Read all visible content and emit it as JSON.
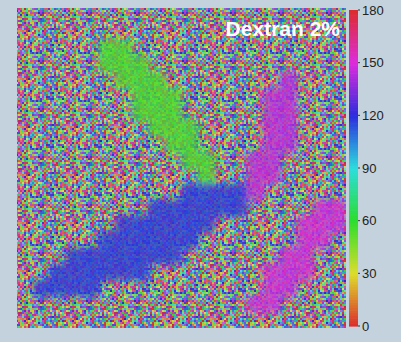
{
  "chart_data": {
    "type": "heatmap",
    "title": "Dextran 2%",
    "cells": [
      [
        null,
        null,
        null,
        null,
        null,
        null,
        null,
        null,
        null,
        null,
        null,
        null,
        null,
        null,
        null,
        null,
        null,
        null,
        null,
        null
      ],
      [
        null,
        null,
        null,
        null,
        null,
        null,
        null,
        null,
        null,
        null,
        null,
        null,
        null,
        null,
        null,
        null,
        null,
        null,
        null,
        null
      ],
      [
        null,
        null,
        null,
        null,
        null,
        55,
        55,
        null,
        null,
        null,
        null,
        null,
        null,
        null,
        null,
        null,
        null,
        null,
        null,
        null
      ],
      [
        null,
        null,
        null,
        null,
        null,
        55,
        55,
        55,
        null,
        null,
        null,
        null,
        null,
        null,
        null,
        null,
        null,
        null,
        null,
        null
      ],
      [
        null,
        null,
        null,
        null,
        null,
        null,
        55,
        55,
        55,
        null,
        null,
        null,
        null,
        null,
        null,
        null,
        145,
        null,
        null,
        null
      ],
      [
        null,
        null,
        null,
        null,
        null,
        null,
        null,
        55,
        55,
        55,
        null,
        null,
        null,
        null,
        null,
        145,
        145,
        null,
        null,
        null
      ],
      [
        null,
        null,
        null,
        null,
        null,
        null,
        null,
        55,
        55,
        55,
        null,
        null,
        null,
        null,
        null,
        145,
        145,
        null,
        null,
        null
      ],
      [
        null,
        null,
        null,
        null,
        null,
        null,
        null,
        null,
        55,
        55,
        55,
        null,
        null,
        null,
        null,
        145,
        145,
        null,
        null,
        null
      ],
      [
        null,
        null,
        null,
        null,
        null,
        null,
        null,
        null,
        null,
        55,
        55,
        null,
        null,
        null,
        null,
        145,
        145,
        null,
        null,
        null
      ],
      [
        null,
        null,
        null,
        null,
        null,
        null,
        null,
        null,
        null,
        null,
        55,
        55,
        null,
        null,
        145,
        145,
        null,
        null,
        null,
        null
      ],
      [
        null,
        null,
        null,
        null,
        null,
        null,
        null,
        null,
        null,
        null,
        null,
        55,
        null,
        null,
        145,
        145,
        null,
        null,
        null,
        null
      ],
      [
        null,
        null,
        null,
        null,
        null,
        null,
        null,
        null,
        null,
        null,
        118,
        118,
        118,
        118,
        145,
        null,
        null,
        null,
        null,
        null
      ],
      [
        null,
        null,
        null,
        null,
        null,
        null,
        null,
        null,
        118,
        118,
        118,
        118,
        118,
        118,
        null,
        null,
        null,
        null,
        148,
        148
      ],
      [
        null,
        null,
        null,
        null,
        null,
        null,
        118,
        118,
        118,
        118,
        118,
        118,
        null,
        null,
        null,
        null,
        null,
        148,
        148,
        148
      ],
      [
        null,
        null,
        null,
        null,
        null,
        118,
        118,
        118,
        118,
        118,
        118,
        null,
        null,
        null,
        null,
        null,
        null,
        148,
        148,
        null
      ],
      [
        null,
        null,
        null,
        118,
        118,
        118,
        118,
        118,
        118,
        118,
        null,
        null,
        null,
        null,
        null,
        null,
        148,
        148,
        null,
        null
      ],
      [
        null,
        null,
        118,
        118,
        118,
        118,
        118,
        118,
        null,
        null,
        null,
        null,
        null,
        null,
        null,
        148,
        148,
        148,
        null,
        null
      ],
      [
        null,
        118,
        118,
        118,
        118,
        null,
        null,
        null,
        null,
        null,
        null,
        null,
        null,
        null,
        null,
        148,
        148,
        null,
        null,
        null
      ],
      [
        null,
        null,
        null,
        null,
        null,
        null,
        null,
        null,
        null,
        null,
        null,
        null,
        null,
        null,
        148,
        148,
        null,
        null,
        null,
        null
      ],
      [
        null,
        null,
        null,
        null,
        null,
        null,
        null,
        null,
        null,
        null,
        null,
        null,
        null,
        null,
        null,
        null,
        null,
        null,
        null,
        null
      ]
    ],
    "colorbar_range": [
      0,
      180
    ],
    "colorbar_ticks": [
      0,
      30,
      60,
      90,
      120,
      150,
      180
    ]
  }
}
